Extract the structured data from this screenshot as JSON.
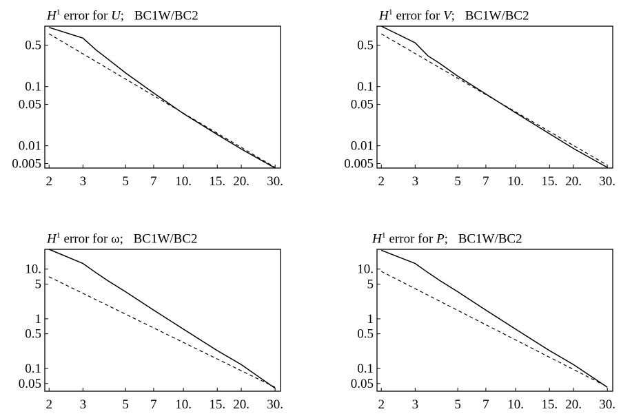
{
  "chart_data": [
    {
      "type": "line",
      "title": {
        "symbol": "H",
        "sup": "1",
        "text": " error for ",
        "var": "U",
        "suffix": "; ",
        "bc": "BC1W/BC2"
      },
      "x_scale": "log",
      "y_scale": "log",
      "xlim": [
        1.9,
        32
      ],
      "ylim": [
        0.0042,
        1.05
      ],
      "x_ticks": [
        {
          "v": 2,
          "l": "2"
        },
        {
          "v": 3,
          "l": "3"
        },
        {
          "v": 5,
          "l": "5"
        },
        {
          "v": 7,
          "l": "7"
        },
        {
          "v": 10,
          "l": "10."
        },
        {
          "v": 15,
          "l": "15."
        },
        {
          "v": 20,
          "l": "20."
        },
        {
          "v": 30,
          "l": "30."
        }
      ],
      "y_ticks": [
        {
          "v": 0.5,
          "l": "0.5"
        },
        {
          "v": 0.1,
          "l": "0.1"
        },
        {
          "v": 0.05,
          "l": "0.05"
        },
        {
          "v": 0.01,
          "l": "0.01"
        },
        {
          "v": 0.005,
          "l": "0.005"
        }
      ],
      "series": [
        {
          "style": "solid",
          "x": [
            2,
            3,
            3.5,
            4,
            5,
            7,
            10,
            15,
            20,
            30
          ],
          "y": [
            1.0,
            0.66,
            0.42,
            0.3,
            0.17,
            0.078,
            0.035,
            0.0155,
            0.0088,
            0.0042
          ]
        },
        {
          "style": "dashed",
          "x": [
            2,
            30
          ],
          "y": [
            0.78,
            0.0043
          ]
        }
      ],
      "grid": false
    },
    {
      "type": "line",
      "title": {
        "symbol": "H",
        "sup": "1",
        "text": " error for ",
        "var": "V",
        "suffix": "; ",
        "bc": "BC1W/BC2"
      },
      "x_scale": "log",
      "y_scale": "log",
      "xlim": [
        1.9,
        32
      ],
      "ylim": [
        0.0042,
        1.05
      ],
      "x_ticks": [
        {
          "v": 2,
          "l": "2"
        },
        {
          "v": 3,
          "l": "3"
        },
        {
          "v": 5,
          "l": "5"
        },
        {
          "v": 7,
          "l": "7"
        },
        {
          "v": 10,
          "l": "10."
        },
        {
          "v": 15,
          "l": "15."
        },
        {
          "v": 20,
          "l": "20."
        },
        {
          "v": 30,
          "l": "30."
        }
      ],
      "y_ticks": [
        {
          "v": 0.5,
          "l": "0.5"
        },
        {
          "v": 0.1,
          "l": "0.1"
        },
        {
          "v": 0.05,
          "l": "0.05"
        },
        {
          "v": 0.01,
          "l": "0.01"
        },
        {
          "v": 0.005,
          "l": "0.005"
        }
      ],
      "series": [
        {
          "style": "solid",
          "x": [
            2,
            3,
            3.5,
            4,
            5,
            7,
            10,
            15,
            20,
            30
          ],
          "y": [
            1.05,
            0.55,
            0.33,
            0.25,
            0.15,
            0.075,
            0.036,
            0.016,
            0.009,
            0.0043
          ]
        },
        {
          "style": "dashed",
          "x": [
            2,
            30
          ],
          "y": [
            0.78,
            0.0047
          ]
        }
      ],
      "grid": false
    },
    {
      "type": "line",
      "title": {
        "symbol": "H",
        "sup": "1",
        "text": " error for ",
        "var": "ω",
        "suffix": "; ",
        "bc": "BC1W/BC2"
      },
      "x_scale": "log",
      "y_scale": "log",
      "xlim": [
        1.9,
        32
      ],
      "ylim": [
        0.035,
        25
      ],
      "x_ticks": [
        {
          "v": 2,
          "l": "2"
        },
        {
          "v": 3,
          "l": "3"
        },
        {
          "v": 5,
          "l": "5"
        },
        {
          "v": 7,
          "l": "7"
        },
        {
          "v": 10,
          "l": "10."
        },
        {
          "v": 15,
          "l": "15."
        },
        {
          "v": 20,
          "l": "20."
        },
        {
          "v": 30,
          "l": "30."
        }
      ],
      "y_ticks": [
        {
          "v": 10,
          "l": "10."
        },
        {
          "v": 5,
          "l": "5"
        },
        {
          "v": 1,
          "l": "1"
        },
        {
          "v": 0.5,
          "l": "0.5"
        },
        {
          "v": 0.1,
          "l": "0.1"
        },
        {
          "v": 0.05,
          "l": "0.05"
        }
      ],
      "series": [
        {
          "style": "solid",
          "x": [
            2,
            3,
            3.5,
            4,
            5,
            7,
            10,
            15,
            20,
            30
          ],
          "y": [
            25,
            13,
            8.5,
            6,
            3.5,
            1.5,
            0.62,
            0.23,
            0.12,
            0.04
          ]
        },
        {
          "style": "dashed",
          "x": [
            2,
            30
          ],
          "y": [
            7,
            0.042
          ]
        }
      ],
      "grid": false
    },
    {
      "type": "line",
      "title": {
        "symbol": "H",
        "sup": "1",
        "text": " error for ",
        "var": "P",
        "suffix": "; ",
        "bc": "BC1W/BC2"
      },
      "x_scale": "log",
      "y_scale": "log",
      "xlim": [
        1.9,
        32
      ],
      "ylim": [
        0.035,
        25
      ],
      "x_ticks": [
        {
          "v": 2,
          "l": "2"
        },
        {
          "v": 3,
          "l": "3"
        },
        {
          "v": 5,
          "l": "5"
        },
        {
          "v": 7,
          "l": "7"
        },
        {
          "v": 10,
          "l": "10."
        },
        {
          "v": 15,
          "l": "15."
        },
        {
          "v": 20,
          "l": "20."
        },
        {
          "v": 30,
          "l": "30."
        }
      ],
      "y_ticks": [
        {
          "v": 10,
          "l": "10."
        },
        {
          "v": 5,
          "l": "5"
        },
        {
          "v": 1,
          "l": "1"
        },
        {
          "v": 0.5,
          "l": "0.5"
        },
        {
          "v": 0.1,
          "l": "0.1"
        },
        {
          "v": 0.05,
          "l": "0.05"
        }
      ],
      "series": [
        {
          "style": "solid",
          "x": [
            2,
            3,
            3.5,
            4,
            5,
            7,
            10,
            15,
            20,
            30
          ],
          "y": [
            24,
            13,
            8.5,
            6,
            3.5,
            1.5,
            0.62,
            0.23,
            0.12,
            0.042
          ]
        },
        {
          "style": "dashed",
          "x": [
            2,
            30
          ],
          "y": [
            9,
            0.043
          ]
        }
      ],
      "grid": false
    }
  ]
}
